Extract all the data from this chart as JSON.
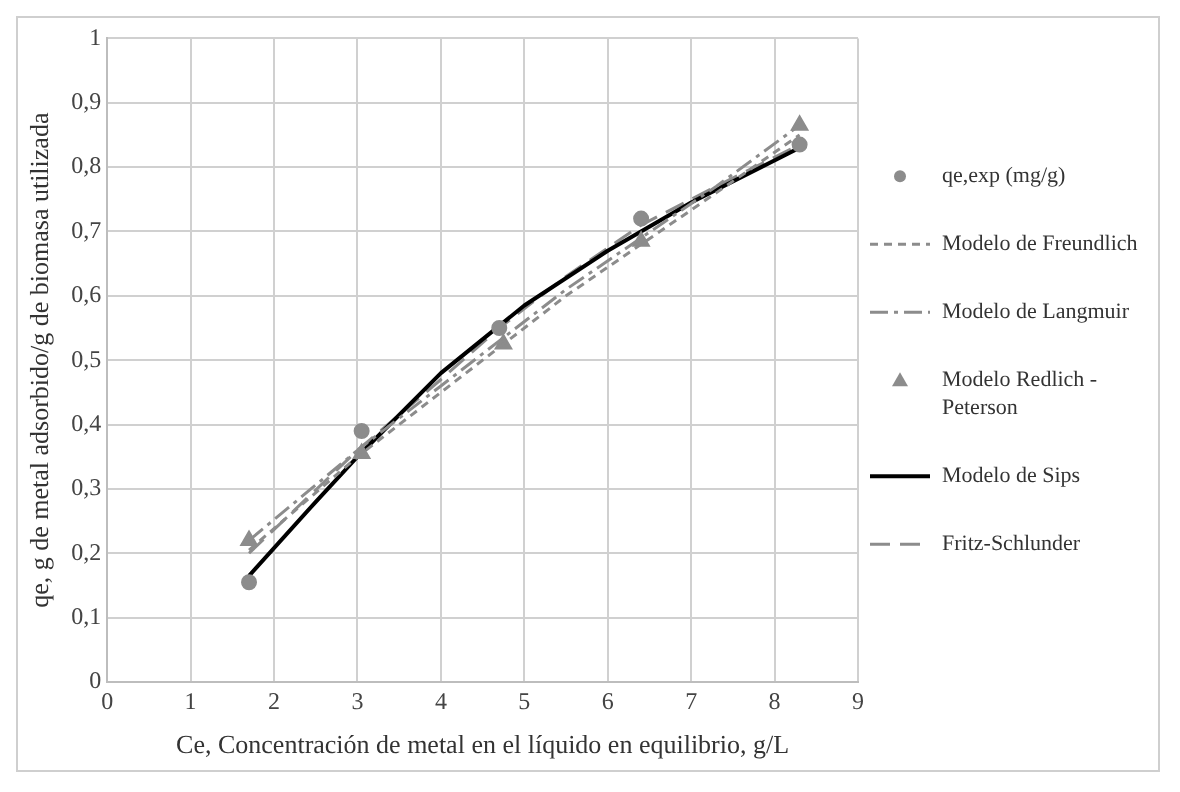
{
  "chart_data": {
    "type": "line",
    "xlabel": "Ce, Concentración de metal en el líquido en equilibrio, g/L",
    "ylabel": "qe, g de metal adsorbido/g de biomasa utilizada",
    "xlim": [
      0,
      9
    ],
    "xticks": [
      0,
      1,
      2,
      3,
      4,
      5,
      6,
      7,
      8,
      9
    ],
    "ylim": [
      0,
      1
    ],
    "yticks": [
      0,
      {
        "value": 0.1,
        "label": "0,1"
      },
      {
        "value": 0.2,
        "label": "0,2"
      },
      {
        "value": 0.3,
        "label": "0,3"
      },
      {
        "value": 0.4,
        "label": "0,4"
      },
      {
        "value": 0.5,
        "label": "0,5"
      },
      {
        "value": 0.6,
        "label": "0,6"
      },
      {
        "value": 0.7,
        "label": "0,7"
      },
      {
        "value": 0.8,
        "label": "0,8"
      },
      {
        "value": 0.9,
        "label": "0,9"
      },
      1
    ],
    "grid": true,
    "legend": "right",
    "series": [
      {
        "name": "qe,exp (mg/g)",
        "type": "scatter",
        "marker": "circle",
        "color": "#8c8c8c",
        "x": [
          1.7,
          3.05,
          4.7,
          6.4,
          8.3
        ],
        "values": [
          0.155,
          0.39,
          0.55,
          0.72,
          0.835
        ]
      },
      {
        "name": "Modelo de Freundlich",
        "type": "line",
        "line_style": "dashed",
        "marker": "none",
        "color": "#8c8c8c",
        "x": [
          1.7,
          3,
          4,
          4.7,
          5.5,
          6.4,
          7.3,
          8.3
        ],
        "values": [
          0.205,
          0.35,
          0.45,
          0.52,
          0.6,
          0.68,
          0.76,
          0.85
        ]
      },
      {
        "name": "Modelo de Langmuir",
        "type": "line",
        "line_style": "dashed",
        "marker": "none",
        "color": "#8c8c8c",
        "x": [
          1.7,
          3,
          4,
          4.7,
          5.5,
          6.4,
          7.3,
          8.3
        ],
        "values": [
          0.22,
          0.36,
          0.46,
          0.53,
          0.61,
          0.69,
          0.77,
          0.865
        ]
      },
      {
        "name": "Modelo Redlich - Peterson",
        "type": "scatter",
        "marker": "triangle",
        "color": "#8c8c8c",
        "x": [
          1.7,
          3.05,
          4.75,
          6.4,
          8.3
        ],
        "values": [
          0.22,
          0.355,
          0.525,
          0.685,
          0.865
        ]
      },
      {
        "name": "Modelo de Sips",
        "type": "line",
        "line_style": "solid",
        "marker": "none",
        "color": "#000000",
        "x": [
          1.7,
          2.5,
          3,
          4,
          5,
          6,
          7,
          8.3
        ],
        "values": [
          0.165,
          0.28,
          0.35,
          0.48,
          0.585,
          0.67,
          0.745,
          0.83
        ]
      },
      {
        "name": "Fritz-Schlunder",
        "type": "line",
        "line_style": "dashed",
        "marker": "none",
        "color": "#8c8c8c",
        "x": [
          1.7,
          3,
          4,
          4.7,
          5.5,
          6.4,
          7.3,
          8.3
        ],
        "values": [
          0.2,
          0.36,
          0.47,
          0.55,
          0.63,
          0.71,
          0.77,
          0.835
        ]
      }
    ]
  }
}
